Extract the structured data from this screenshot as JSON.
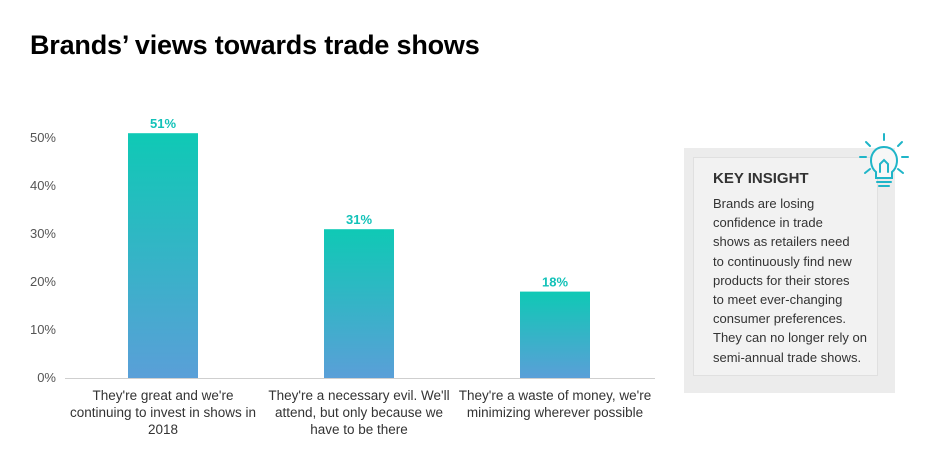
{
  "title": "Brands’ views towards trade shows",
  "chart_data": {
    "type": "bar",
    "categories": [
      "They're great and we're continuing to invest in shows in 2018",
      "They're a necessary evil. We'll attend, but only because we have to be there",
      "They're a waste of money, we're minimizing wherever possible"
    ],
    "category_lines": [
      [
        "They're great and we're",
        "continuing to invest in shows in",
        "2018"
      ],
      [
        "They're a necessary evil. We'll",
        "attend, but only because we",
        "have to be there"
      ],
      [
        "They're a waste of money, we're",
        "minimizing wherever possible"
      ]
    ],
    "values": [
      51,
      31,
      18
    ],
    "data_labels": [
      "51%",
      "31%",
      "18%"
    ],
    "yticks": [
      "0%",
      "10%",
      "20%",
      "30%",
      "40%",
      "50%"
    ],
    "ylim": [
      0,
      50
    ],
    "xlabel": "",
    "ylabel": "",
    "gradient": {
      "top": "#0fc9b5",
      "bottom": "#5a9fd8"
    }
  },
  "insight": {
    "heading": "KEY INSIGHT",
    "lines": [
      "Brands are losing",
      "confidence in trade",
      "shows as retailers need",
      "to continuously find new",
      "products for their stores",
      "to meet ever-changing",
      "consumer preferences.",
      "They can no longer rely on",
      "semi-annual trade shows."
    ],
    "icon": "lightbulb-icon",
    "accent": "#1fb5c8"
  }
}
